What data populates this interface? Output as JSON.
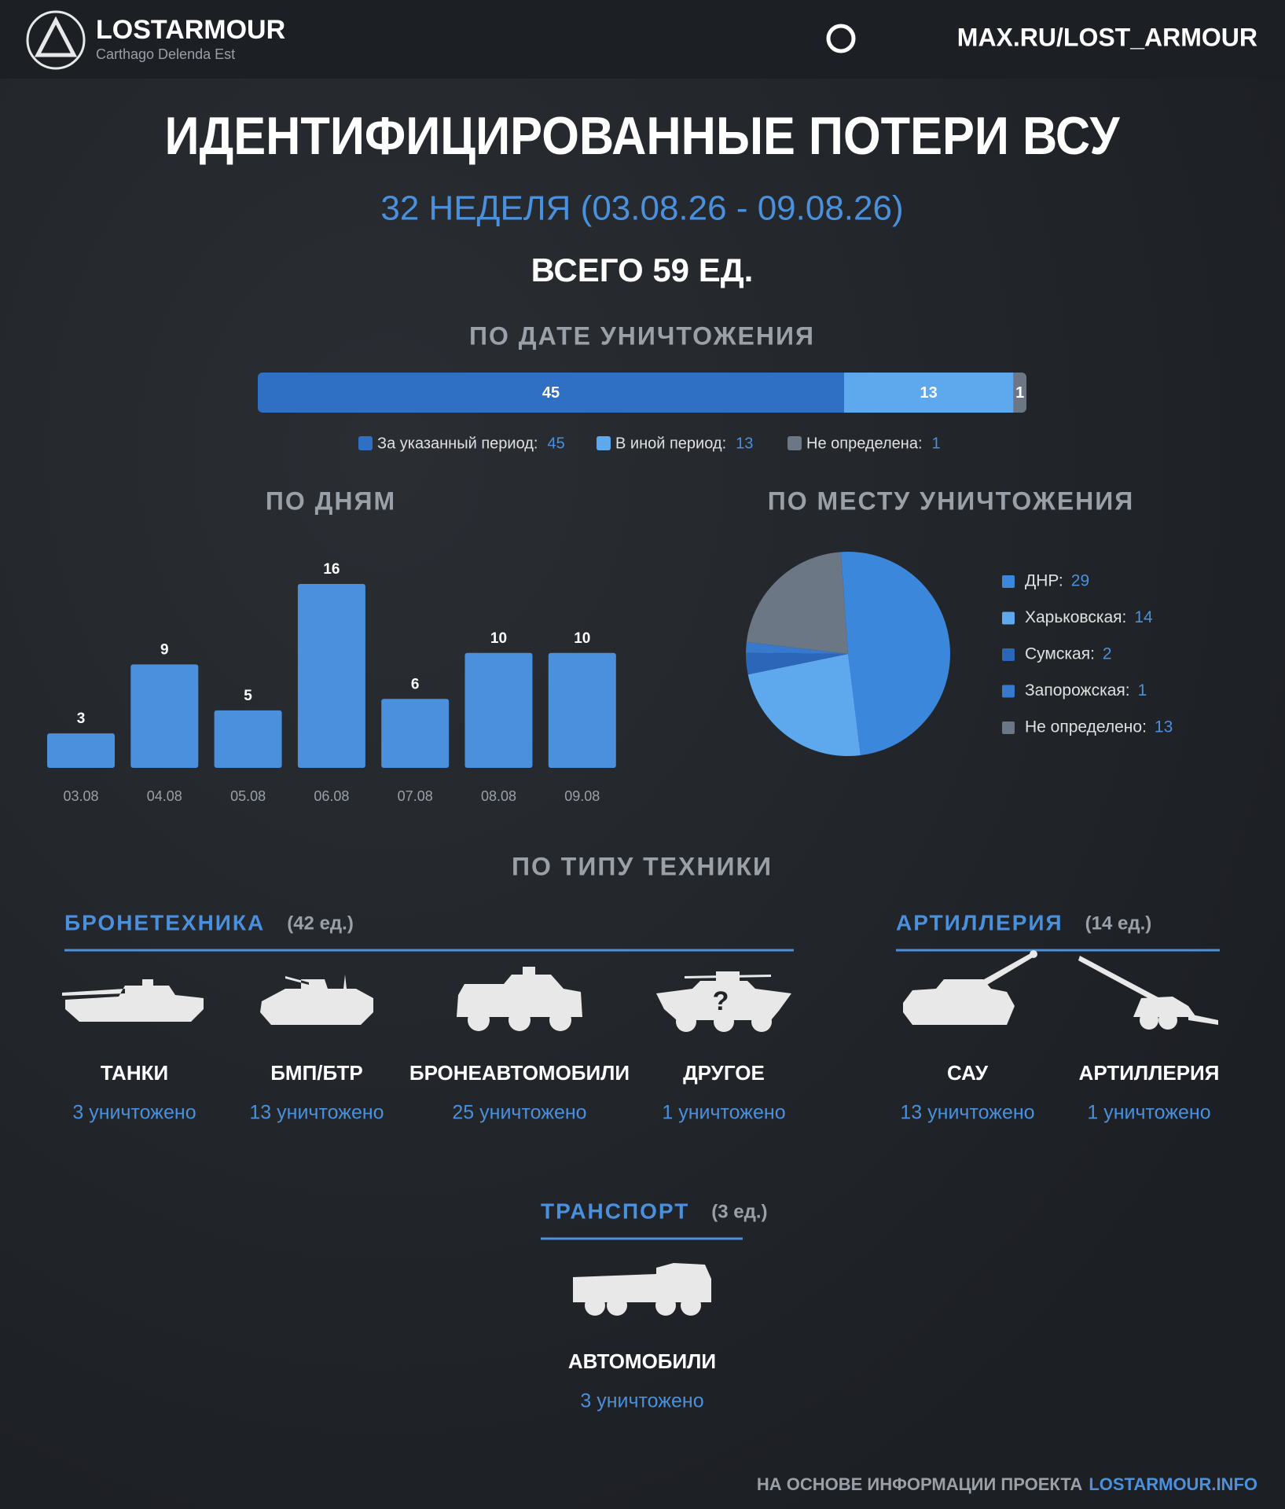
{
  "header": {
    "brand": "LOSTARMOUR",
    "tagline": "Carthago Delenda Est",
    "link": "MAX.RU/LOST_ARMOUR"
  },
  "title": "ИДЕНТИФИЦИРОВАННЫЕ ПОТЕРИ ВСУ",
  "subtitle": "32 НЕДЕЛЯ (03.08.26 - 09.08.26)",
  "total": "ВСЕГО 59 ЕД.",
  "chart_data": [
    {
      "type": "stacked-bar",
      "title": "ПО ДАТЕ УНИЧТОЖЕНИЯ",
      "series": [
        {
          "name": "За указанный период:",
          "color": "#2f6fc4",
          "values": [
            45
          ]
        },
        {
          "name": "В иной период:",
          "color": "#5ea8ee",
          "values": [
            13
          ]
        },
        {
          "name": "Не определена:",
          "color": "#6b7785",
          "values": [
            1
          ]
        }
      ]
    },
    {
      "type": "bar",
      "title": "ПО ДНЯМ",
      "categories": [
        "03.08",
        "04.08",
        "05.08",
        "06.08",
        "07.08",
        "08.08",
        "09.08"
      ],
      "values": [
        3,
        9,
        5,
        16,
        6,
        10,
        10
      ],
      "color": "#4a90dc"
    },
    {
      "type": "pie",
      "title": "ПО МЕСТУ УНИЧТОЖЕНИЯ",
      "categories": [
        "ДНР:",
        "Харьковская:",
        "Сумская:",
        "Запорожская:",
        "Не определено:"
      ],
      "values": [
        29,
        14,
        2,
        1,
        13
      ],
      "colors": [
        "#3b87dc",
        "#5ea8ee",
        "#2b66b8",
        "#3779cc",
        "#6b7785"
      ]
    }
  ],
  "vehicles": {
    "title": "ПО ТИПУ ТЕХНИКИ",
    "groups": [
      {
        "name": "БРОНЕТЕХНИКА",
        "count": "(42 ед.)",
        "items": [
          {
            "label": "ТАНКИ",
            "count": "3 уничтожено"
          },
          {
            "label": "БМП/БТР",
            "count": "13 уничтожено"
          },
          {
            "label": "БРОНЕАВТОМОБИЛИ",
            "count": "25 уничтожено"
          },
          {
            "label": "ДРУГОЕ",
            "count": "1 уничтожено"
          }
        ]
      },
      {
        "name": "АРТИЛЛЕРИЯ",
        "count": "(14 ед.)",
        "items": [
          {
            "label": "САУ",
            "count": "13 уничтожено"
          },
          {
            "label": "АРТИЛЛЕРИЯ",
            "count": "1 уничтожено"
          }
        ]
      },
      {
        "name": "ТРАНСПОРТ",
        "count": "(3 ед.)",
        "items": [
          {
            "label": "АВТОМОБИЛИ",
            "count": "3 уничтожено"
          }
        ]
      }
    ]
  },
  "footer": {
    "text": "НА ОСНОВЕ ИНФОРМАЦИИ ПРОЕКТА",
    "link": "LOSTARMOUR.INFO"
  }
}
